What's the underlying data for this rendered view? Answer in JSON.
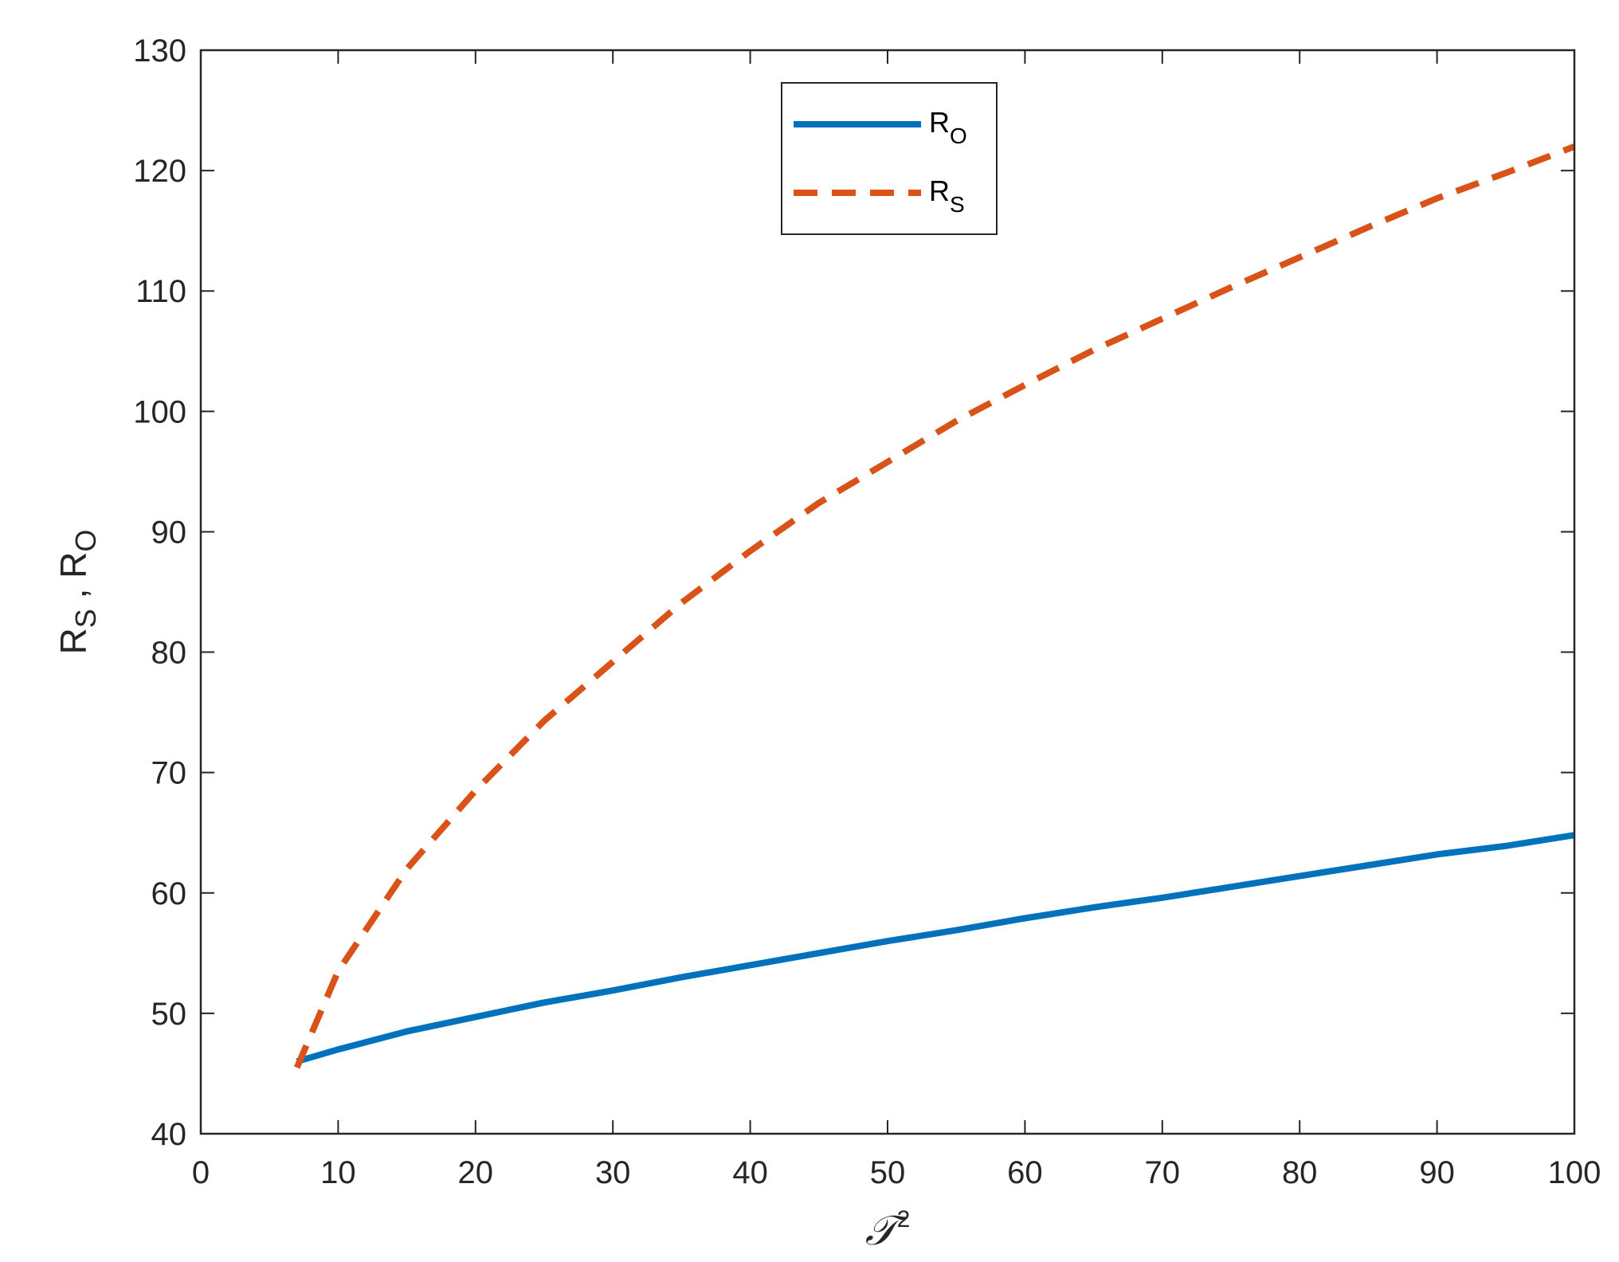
{
  "chart_data": {
    "type": "line",
    "xlabel_main": "𝒯",
    "xlabel_sup": "2",
    "ylabel_parts": [
      {
        "text": "R",
        "sub": "S"
      },
      {
        "text": " , R",
        "sub": "O"
      }
    ],
    "xlim": [
      0,
      100
    ],
    "ylim": [
      40,
      130
    ],
    "xticks": [
      0,
      10,
      20,
      30,
      40,
      50,
      60,
      70,
      80,
      90,
      100
    ],
    "yticks": [
      40,
      50,
      60,
      70,
      80,
      90,
      100,
      110,
      120,
      130
    ],
    "grid": false,
    "legend_position": "top-center",
    "series": [
      {
        "name_main": "R",
        "name_sub": "O",
        "style": "solid",
        "color": "#0072BD",
        "x": [
          7,
          10,
          15,
          20,
          25,
          30,
          35,
          40,
          45,
          50,
          55,
          60,
          65,
          70,
          75,
          80,
          85,
          90,
          95,
          100
        ],
        "y": [
          46.0,
          47.0,
          48.5,
          49.7,
          50.9,
          51.9,
          53.0,
          54.0,
          55.0,
          56.0,
          56.9,
          57.9,
          58.8,
          59.6,
          60.5,
          61.4,
          62.3,
          63.2,
          63.9,
          64.8
        ]
      },
      {
        "name_main": "R",
        "name_sub": "S",
        "style": "dashed",
        "color": "#D95319",
        "x": [
          7,
          10,
          15,
          20,
          25,
          30,
          35,
          40,
          45,
          50,
          55,
          60,
          65,
          70,
          75,
          80,
          85,
          90,
          95,
          100
        ],
        "y": [
          45.5,
          53.5,
          62.0,
          68.5,
          74.3,
          79.2,
          84.1,
          88.4,
          92.4,
          95.8,
          99.2,
          102.2,
          105.1,
          107.7,
          110.3,
          112.8,
          115.3,
          117.7,
          119.8,
          122.0
        ]
      }
    ]
  }
}
